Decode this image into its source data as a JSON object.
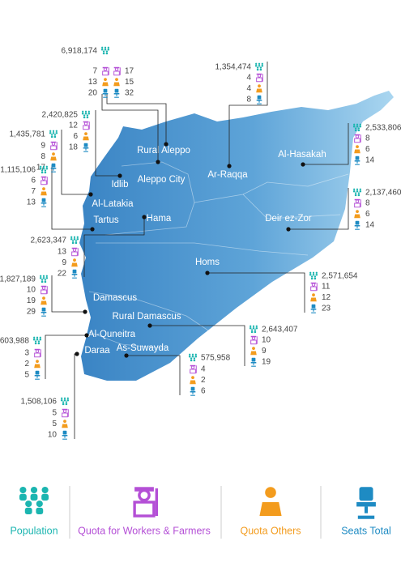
{
  "regions": [
    {
      "name": "Rural Aleppo",
      "population": "6,918,174",
      "quota_workers": 7,
      "quota_others": 13,
      "seats": 20
    },
    {
      "name": "Aleppo City",
      "quota_workers": 17,
      "quota_others": 15,
      "seats": 32
    },
    {
      "name": "Ar-Raqqa",
      "population": "1,354,474",
      "quota_workers": 4,
      "quota_others": 4,
      "seats": 8
    },
    {
      "name": "Al-Hasakah",
      "population": "2,533,806",
      "quota_workers": 8,
      "quota_others": 6,
      "seats": 14
    },
    {
      "name": "Idlib",
      "population": "2,420,825",
      "quota_workers": 12,
      "quota_others": 6,
      "seats": 18
    },
    {
      "name": "Al-Latakia",
      "population": "1,435,781",
      "quota_workers": 9,
      "quota_others": 8,
      "seats": 17
    },
    {
      "name": "Tartus",
      "population": "1,115,106",
      "quota_workers": 6,
      "quota_others": 7,
      "seats": 13
    },
    {
      "name": "Deir ez-Zor",
      "population": "2,137,460",
      "quota_workers": 8,
      "quota_others": 6,
      "seats": 14
    },
    {
      "name": "Hama",
      "population": "2,623,347",
      "quota_workers": 13,
      "quota_others": 9,
      "seats": 22
    },
    {
      "name": "Homs",
      "population": "2,571,654",
      "quota_workers": 11,
      "quota_others": 12,
      "seats": 23
    },
    {
      "name": "Damascus",
      "population": "1,827,189",
      "quota_workers": 10,
      "quota_others": 19,
      "seats": 29
    },
    {
      "name": "Rural Damascus",
      "population": "2,643,407",
      "quota_workers": 10,
      "quota_others": 9,
      "seats": 19
    },
    {
      "name": "Al-Quneitra",
      "population": "603,988",
      "quota_workers": 3,
      "quota_others": 2,
      "seats": 5
    },
    {
      "name": "As-Suwayda",
      "population": "575,958",
      "quota_workers": 4,
      "quota_others": 2,
      "seats": 6
    },
    {
      "name": "Daraa",
      "population": "1,508,106",
      "quota_workers": 5,
      "quota_others": 5,
      "seats": 10
    }
  ],
  "legend": {
    "population": "Population",
    "quota_workers": "Quota for Workers & Farmers",
    "quota_others": "Quota Others",
    "seats": "Seats Total"
  }
}
